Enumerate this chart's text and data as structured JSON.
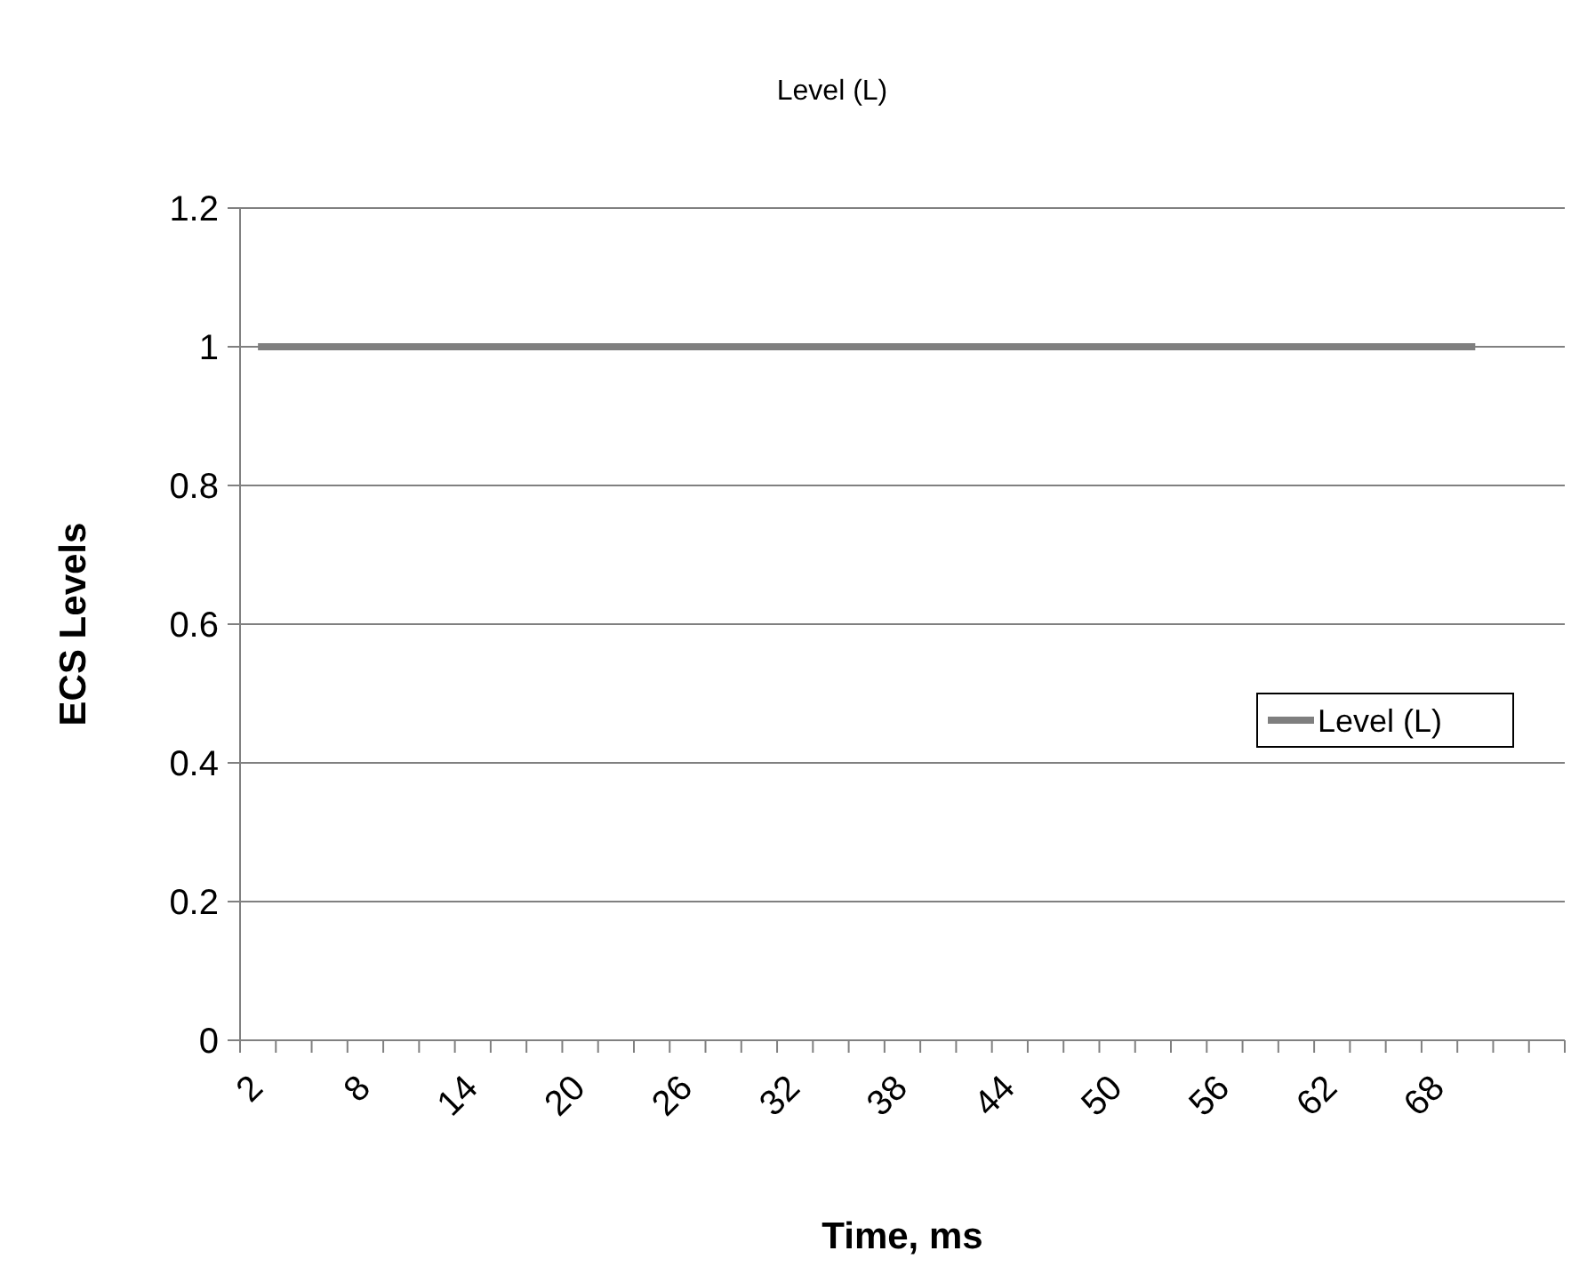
{
  "chart_data": {
    "type": "line",
    "title": "Level (L)",
    "xlabel": "Time, ms",
    "ylabel": "ECS Levels",
    "categories": [
      "2",
      null,
      null,
      "8",
      null,
      null,
      "14",
      null,
      null,
      "20",
      null,
      null,
      "26",
      null,
      null,
      "32",
      null,
      null,
      "38",
      null,
      null,
      "44",
      null,
      null,
      "50",
      null,
      null,
      "56",
      null,
      null,
      "62",
      null,
      null,
      "68",
      null,
      null,
      null
    ],
    "series": [
      {
        "name": "Level (L)",
        "color": "#7f7f7f",
        "values": [
          1,
          1,
          1,
          1,
          1,
          1,
          1,
          1,
          1,
          1,
          1,
          1,
          1,
          1,
          1,
          1,
          1,
          1,
          1,
          1,
          1,
          1,
          1,
          1,
          1,
          1,
          1,
          1,
          1,
          1,
          1,
          1,
          1,
          1,
          1,
          null,
          null
        ]
      }
    ],
    "ylim": [
      0,
      1.2
    ],
    "yticks": [
      0,
      0.2,
      0.4,
      0.6,
      0.8,
      1,
      1.2
    ],
    "grid": "y",
    "legend": "right",
    "marker": "none",
    "line_style": "solid"
  }
}
